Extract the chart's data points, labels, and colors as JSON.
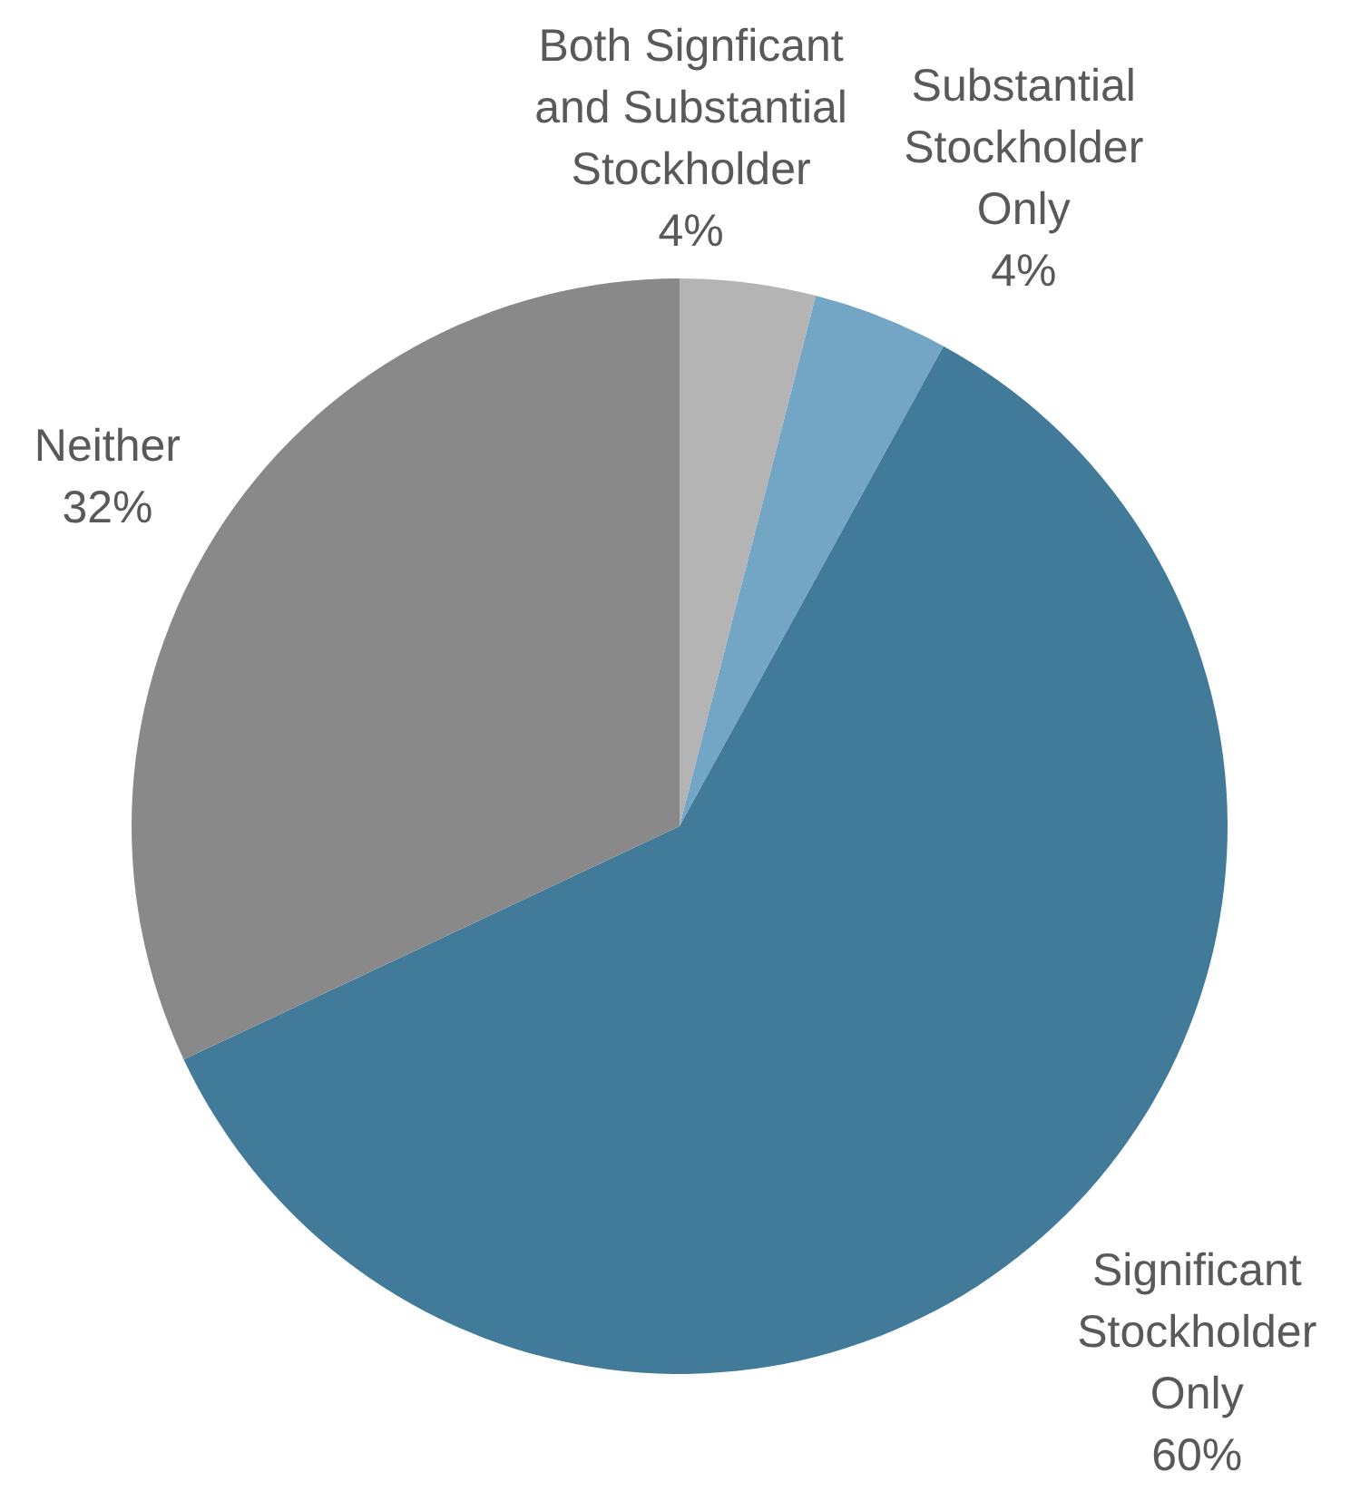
{
  "chart_data": {
    "type": "pie",
    "categories": [
      "Both Signficant and Substantial Stockholder",
      "Substantial Stockholder Only",
      "Significant Stockholder Only",
      "Neither"
    ],
    "values": [
      4,
      4,
      60,
      32
    ],
    "value_labels": [
      "4%",
      "4%",
      "60%",
      "32%"
    ],
    "colors": [
      "#b4b4b4",
      "#72a6c4",
      "#427b99",
      "#898989"
    ]
  }
}
